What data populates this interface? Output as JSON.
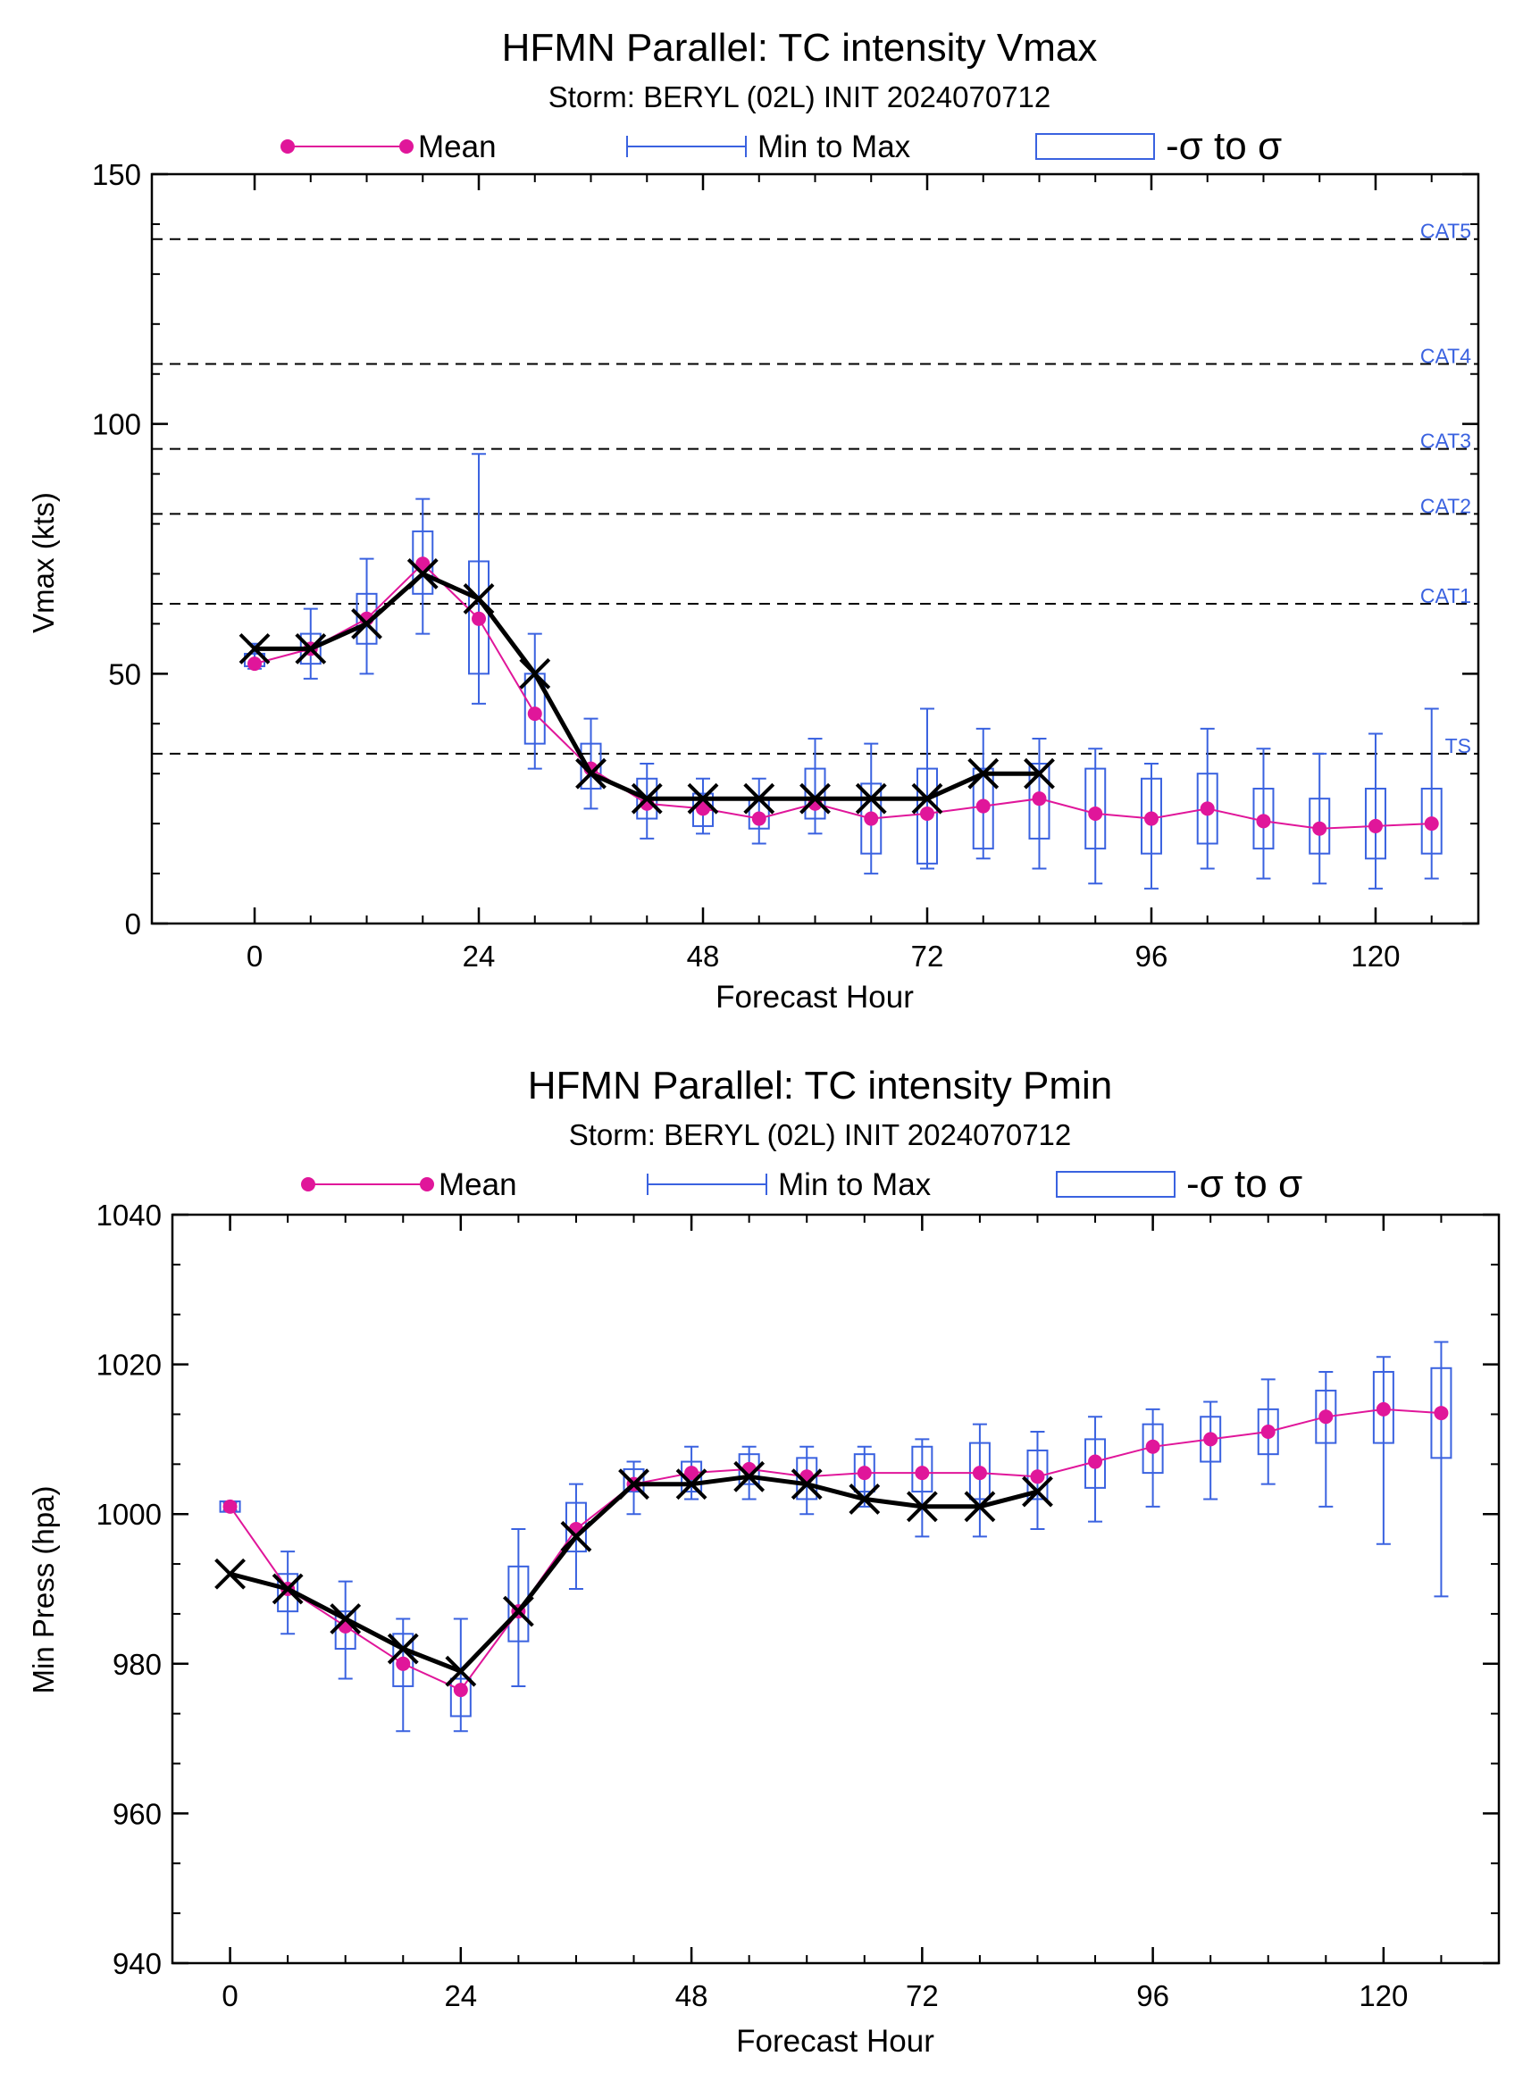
{
  "charts": [
    {
      "title": "HFMN Parallel: TC intensity Vmax",
      "subtitle": "Storm: BERYL (02L) INIT 2024070712",
      "legend": {
        "mean": "Mean",
        "minmax": "Min to Max",
        "sigma": "-σ to σ"
      }
    },
    {
      "title": "HFMN Parallel: TC intensity Pmin",
      "subtitle": "Storm: BERYL (02L) INIT 2024070712",
      "legend": {
        "mean": "Mean",
        "minmax": "Min to Max",
        "sigma": "-σ to σ"
      }
    }
  ],
  "colors": {
    "mean": "#e0169a",
    "ensemble": "#3a62e0",
    "observed": "#000000",
    "threshold_label": "#3a62e0"
  },
  "chart_data": [
    {
      "type": "line",
      "title": "HFMN Parallel: TC intensity Vmax",
      "subtitle": "Storm: BERYL (02L) INIT 2024070712",
      "xlabel": "Forecast Hour",
      "ylabel": "Vmax (kts)",
      "xlim": [
        -11,
        131
      ],
      "ylim": [
        0,
        150
      ],
      "xticks": [
        0,
        24,
        48,
        72,
        96,
        120
      ],
      "yticks": [
        0,
        50,
        100,
        150
      ],
      "legend_position": "top",
      "thresholds": [
        {
          "label": "TS",
          "value": 34
        },
        {
          "label": "CAT1",
          "value": 64
        },
        {
          "label": "CAT2",
          "value": 82
        },
        {
          "label": "CAT3",
          "value": 95
        },
        {
          "label": "CAT4",
          "value": 112
        },
        {
          "label": "CAT5",
          "value": 137
        }
      ],
      "series": [
        {
          "name": "Mean",
          "x": [
            0,
            6,
            12,
            18,
            24,
            30,
            36,
            42,
            48,
            54,
            60,
            66,
            72,
            78,
            84,
            90,
            96,
            102,
            108,
            114,
            120,
            126
          ],
          "values": [
            52,
            55,
            61,
            72,
            61,
            42,
            31,
            24,
            23,
            21,
            24,
            21,
            22,
            23.5,
            25,
            22,
            21,
            23,
            20.5,
            19,
            19.5,
            20
          ]
        },
        {
          "name": "Min to Max",
          "x": [
            0,
            6,
            12,
            18,
            24,
            30,
            36,
            42,
            48,
            54,
            60,
            66,
            72,
            78,
            84,
            90,
            96,
            102,
            108,
            114,
            120,
            126
          ],
          "min": [
            51,
            49,
            50,
            58,
            44,
            31,
            23,
            17,
            18,
            16,
            18,
            10,
            11,
            13,
            11,
            8,
            7,
            11,
            9,
            8,
            7,
            9
          ],
          "max": [
            56,
            63,
            73,
            85,
            94,
            58,
            41,
            32,
            29,
            29,
            37,
            36,
            43,
            39,
            37,
            35,
            32,
            39,
            35,
            34,
            38,
            43
          ]
        },
        {
          "name": "-σ to σ",
          "x": [
            0,
            6,
            12,
            18,
            24,
            30,
            36,
            42,
            48,
            54,
            60,
            66,
            72,
            78,
            84,
            90,
            96,
            102,
            108,
            114,
            120,
            126
          ],
          "low": [
            51.5,
            52,
            56,
            66,
            50,
            36,
            27,
            21,
            19.5,
            19,
            21,
            14,
            12,
            15,
            17,
            15,
            14,
            16,
            15,
            14,
            13,
            14
          ],
          "high": [
            54,
            58,
            66,
            78.5,
            72.5,
            50,
            36,
            29,
            26,
            25,
            31,
            28,
            31,
            31,
            32,
            31,
            29,
            30,
            27,
            25,
            27,
            27
          ]
        },
        {
          "name": "",
          "marker": "x",
          "x": [
            0,
            6,
            12,
            18,
            24,
            30,
            36,
            42,
            48,
            54,
            60,
            66,
            72,
            78,
            84
          ],
          "values": [
            55,
            55,
            60,
            70,
            65,
            50,
            30,
            25,
            25,
            25,
            25,
            25,
            25,
            30,
            30
          ]
        }
      ]
    },
    {
      "type": "line",
      "title": "HFMN Parallel: TC intensity Pmin",
      "subtitle": "Storm: BERYL (02L) INIT 2024070712",
      "xlabel": "Forecast Hour",
      "ylabel": "Min Press (hpa)",
      "xlim": [
        -6,
        132
      ],
      "ylim": [
        940,
        1040
      ],
      "xticks": [
        0,
        24,
        48,
        72,
        96,
        120
      ],
      "yticks": [
        940,
        960,
        980,
        1000,
        1020,
        1040
      ],
      "legend_position": "top",
      "series": [
        {
          "name": "Mean",
          "x": [
            0,
            6,
            12,
            18,
            24,
            30,
            36,
            42,
            48,
            54,
            60,
            66,
            72,
            78,
            84,
            90,
            96,
            102,
            108,
            114,
            120,
            126
          ],
          "values": [
            1001,
            990,
            985,
            980,
            976.5,
            987,
            998,
            1004,
            1005.5,
            1006,
            1005,
            1005.5,
            1005.5,
            1005.5,
            1005,
            1007,
            1009,
            1010,
            1011,
            1013,
            1014,
            1013.5
          ]
        },
        {
          "name": "Min to Max",
          "x": [
            0,
            6,
            12,
            18,
            24,
            30,
            36,
            42,
            48,
            54,
            60,
            66,
            72,
            78,
            84,
            90,
            96,
            102,
            108,
            114,
            120,
            126
          ],
          "min": [
            1000.5,
            984,
            978,
            971,
            971,
            977,
            990,
            1000,
            1002,
            1002,
            1000,
            1001,
            997,
            997,
            998,
            999,
            1001,
            1002,
            1004,
            1001,
            996,
            989
          ],
          "max": [
            1001.5,
            995,
            991,
            986,
            986,
            998,
            1004,
            1007,
            1009,
            1009,
            1009,
            1009,
            1010,
            1012,
            1011,
            1013,
            1014,
            1015,
            1018,
            1019,
            1021,
            1023
          ]
        },
        {
          "name": "-σ to σ",
          "x": [
            0,
            6,
            12,
            18,
            24,
            30,
            36,
            42,
            48,
            54,
            60,
            66,
            72,
            78,
            84,
            90,
            96,
            102,
            108,
            114,
            120,
            126
          ],
          "low": [
            1000.3,
            987,
            982,
            977,
            973,
            983,
            995,
            1003,
            1003,
            1004,
            1002,
            1003,
            1003,
            1002,
            1002,
            1003.5,
            1005.5,
            1007,
            1008,
            1009.5,
            1009.5,
            1007.5
          ],
          "high": [
            1001.7,
            992,
            987,
            984,
            978,
            993,
            1001.5,
            1006,
            1007,
            1008,
            1007.5,
            1008,
            1009,
            1009.5,
            1008.5,
            1010,
            1012,
            1013,
            1014,
            1016.5,
            1019,
            1019.5
          ]
        },
        {
          "name": "",
          "marker": "x",
          "x": [
            0,
            6,
            12,
            18,
            24,
            30,
            36,
            42,
            48,
            54,
            60,
            66,
            72,
            78,
            84
          ],
          "values": [
            992,
            990,
            986,
            982,
            979,
            987,
            997,
            1004,
            1004,
            1005,
            1004,
            1002,
            1001,
            1001,
            1003
          ]
        }
      ]
    }
  ]
}
